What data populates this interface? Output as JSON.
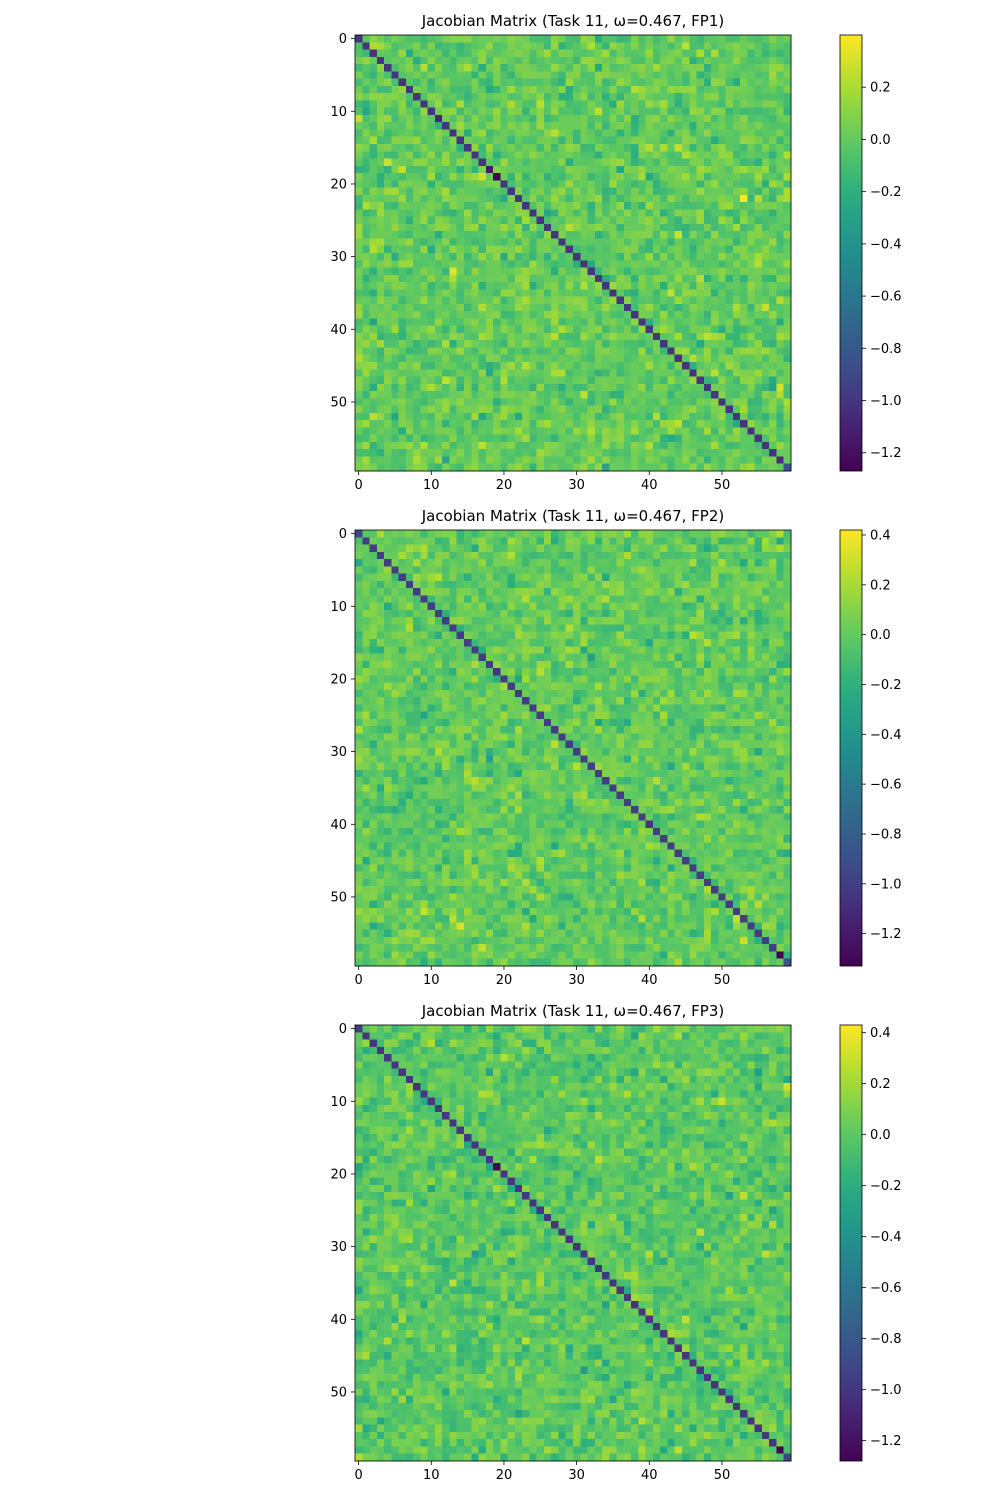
{
  "chart_data": [
    {
      "type": "heatmap",
      "title": "Jacobian Matrix (Task 11, ω=0.467, FP1)",
      "xlabel": "",
      "ylabel": "",
      "size": 60,
      "xticks": [
        0,
        10,
        20,
        30,
        40,
        50
      ],
      "yticks": [
        0,
        10,
        20,
        30,
        40,
        50
      ],
      "xlim": [
        -0.5,
        59.5
      ],
      "ylim": [
        59.5,
        -0.5
      ],
      "vmin": -1.27,
      "vmax": 0.4,
      "colorbar_ticks": [
        0.2,
        0.0,
        -0.2,
        -0.4,
        -0.6,
        -0.8,
        -1.0,
        -1.2
      ],
      "colorbar_tick_labels": [
        "0.2",
        "0.0",
        "−0.2",
        "−0.4",
        "−0.6",
        "−0.8",
        "−1.0",
        "−1.2"
      ],
      "colormap": "viridis",
      "diagonal": [
        -1.0,
        -1.0,
        -1.0,
        -1.0,
        -1.0,
        -1.0,
        -1.0,
        -1.0,
        -1.0,
        -1.0,
        -1.0,
        -1.1,
        -1.0,
        -1.0,
        -1.0,
        -1.0,
        -1.0,
        -1.0,
        -1.15,
        -1.27,
        -1.0,
        -1.0,
        -1.0,
        -1.0,
        -1.0,
        -1.0,
        -1.0,
        -1.0,
        -1.0,
        -1.0,
        -1.0,
        -1.0,
        -1.0,
        -1.0,
        -1.0,
        -1.0,
        -1.0,
        -1.0,
        -1.0,
        -1.0,
        -1.0,
        -1.0,
        -1.0,
        -1.0,
        -1.0,
        -1.0,
        -1.0,
        -1.0,
        -1.0,
        -1.0,
        -1.0,
        -1.0,
        -1.0,
        -1.0,
        -1.0,
        -1.0,
        -1.0,
        -1.0,
        -1.05,
        -0.85
      ],
      "off_diagonal": {
        "mean": 0.0,
        "std": 0.09,
        "seed": 11
      }
    },
    {
      "type": "heatmap",
      "title": "Jacobian Matrix (Task 11, ω=0.467, FP2)",
      "xlabel": "",
      "ylabel": "",
      "size": 60,
      "xticks": [
        0,
        10,
        20,
        30,
        40,
        50
      ],
      "yticks": [
        0,
        10,
        20,
        30,
        40,
        50
      ],
      "xlim": [
        -0.5,
        59.5
      ],
      "ylim": [
        59.5,
        -0.5
      ],
      "vmin": -1.33,
      "vmax": 0.42,
      "colorbar_ticks": [
        0.4,
        0.2,
        0.0,
        -0.2,
        -0.4,
        -0.6,
        -0.8,
        -1.0,
        -1.2
      ],
      "colorbar_tick_labels": [
        "0.4",
        "0.2",
        "0.0",
        "−0.2",
        "−0.4",
        "−0.6",
        "−0.8",
        "−1.0",
        "−1.2"
      ],
      "colormap": "viridis",
      "diagonal": [
        -0.95,
        -1.0,
        -1.0,
        -1.0,
        -1.0,
        -1.0,
        -1.0,
        -1.0,
        -1.0,
        -1.0,
        -1.0,
        -1.0,
        -1.0,
        -1.0,
        -1.0,
        -1.0,
        -1.0,
        -1.0,
        -1.0,
        -1.05,
        -1.0,
        -1.0,
        -1.0,
        -1.0,
        -1.0,
        -1.0,
        -1.0,
        -1.0,
        -1.0,
        -1.0,
        -1.0,
        -1.0,
        -1.0,
        -1.0,
        -1.0,
        -1.0,
        -1.0,
        -1.0,
        -1.0,
        -1.0,
        -1.05,
        -1.0,
        -1.0,
        -1.0,
        -1.0,
        -1.0,
        -1.0,
        -1.0,
        -1.0,
        -1.0,
        -1.0,
        -1.0,
        -1.0,
        -1.0,
        -1.0,
        -1.0,
        -1.0,
        -1.0,
        -1.33,
        -0.9
      ],
      "off_diagonal": {
        "mean": 0.0,
        "std": 0.09,
        "seed": 22
      }
    },
    {
      "type": "heatmap",
      "title": "Jacobian Matrix (Task 11, ω=0.467, FP3)",
      "xlabel": "",
      "ylabel": "",
      "size": 60,
      "xticks": [
        0,
        10,
        20,
        30,
        40,
        50
      ],
      "yticks": [
        0,
        10,
        20,
        30,
        40,
        50
      ],
      "xlim": [
        -0.5,
        59.5
      ],
      "ylim": [
        59.5,
        -0.5
      ],
      "vmin": -1.28,
      "vmax": 0.43,
      "colorbar_ticks": [
        0.4,
        0.2,
        0.0,
        -0.2,
        -0.4,
        -0.6,
        -0.8,
        -1.0,
        -1.2
      ],
      "colorbar_tick_labels": [
        "0.4",
        "0.2",
        "0.0",
        "−0.2",
        "−0.4",
        "−0.6",
        "−0.8",
        "−1.0",
        "−1.2"
      ],
      "colormap": "viridis",
      "diagonal": [
        -0.95,
        -1.0,
        -1.0,
        -1.0,
        -1.0,
        -1.0,
        -1.0,
        -1.0,
        -1.0,
        -1.0,
        -1.0,
        -1.0,
        -1.0,
        -1.0,
        -1.0,
        -1.0,
        -1.0,
        -1.0,
        -1.0,
        -1.25,
        -1.0,
        -1.0,
        -1.0,
        -1.0,
        -1.0,
        -1.0,
        -1.0,
        -1.0,
        -1.0,
        -1.0,
        -1.0,
        -1.0,
        -1.0,
        -1.0,
        -1.0,
        -1.0,
        -1.0,
        -1.0,
        -1.0,
        -1.0,
        -1.0,
        -1.0,
        -1.0,
        -1.0,
        -1.0,
        -1.0,
        -1.0,
        -1.0,
        -1.0,
        -1.0,
        -1.0,
        -1.0,
        -1.0,
        -1.0,
        -1.0,
        -1.0,
        -1.0,
        -1.0,
        -1.28,
        -0.9
      ],
      "off_diagonal": {
        "mean": 0.0,
        "std": 0.09,
        "seed": 33
      }
    }
  ]
}
